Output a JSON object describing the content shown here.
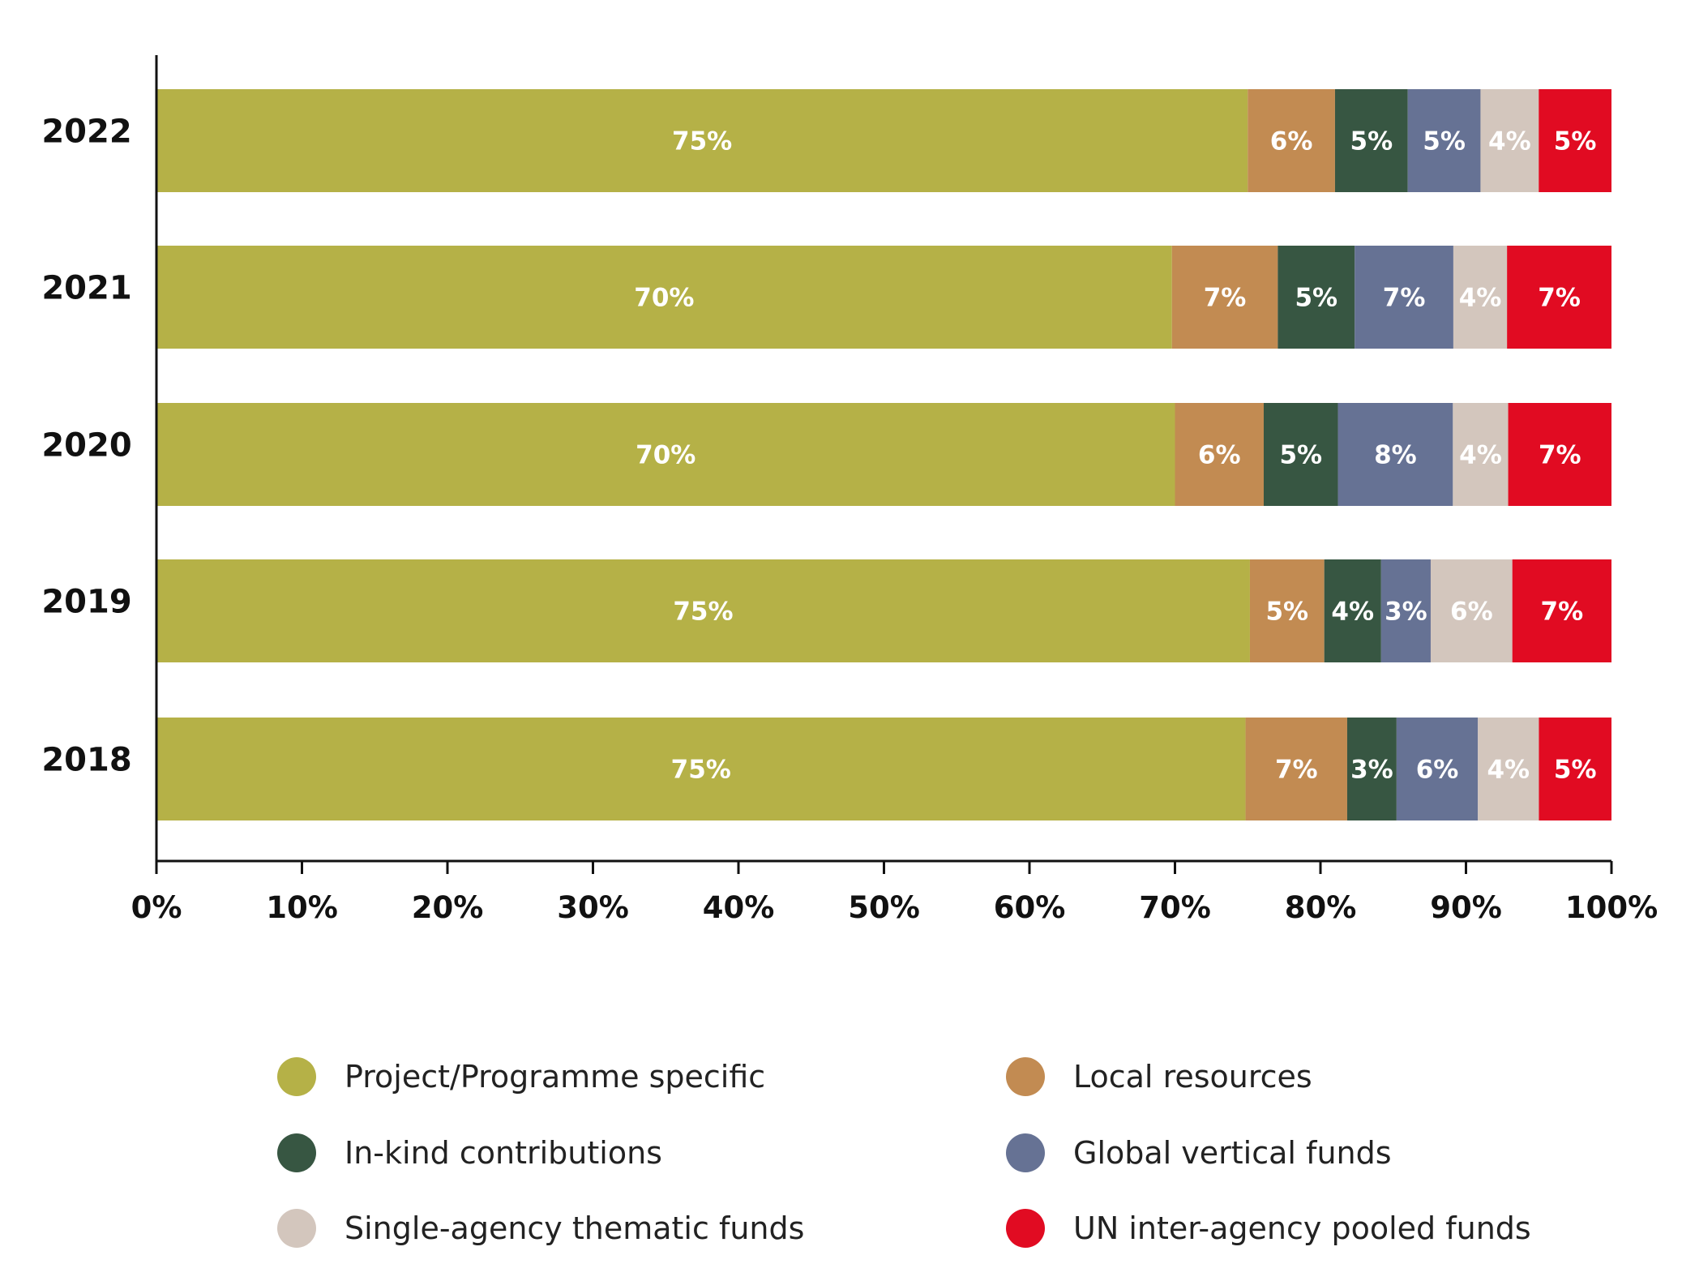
{
  "chart_data": {
    "type": "bar",
    "orientation": "horizontal",
    "stacked": true,
    "categories": [
      "2022",
      "2021",
      "2020",
      "2019",
      "2018"
    ],
    "series": [
      {
        "name": "Project/Programme specific",
        "color": "#b5b147",
        "values": [
          75,
          70,
          70,
          75,
          75
        ],
        "labels": [
          "75%",
          "70%",
          "70%",
          "75%",
          "75%"
        ]
      },
      {
        "name": "Local resources",
        "color": "#c28b52",
        "values": [
          6,
          7.3,
          6.1,
          5.1,
          7
        ],
        "labels": [
          "6%",
          "7%",
          "6%",
          "5%",
          "7%"
        ]
      },
      {
        "name": "In-kind contributions",
        "color": "#375642",
        "values": [
          5,
          5.3,
          5.1,
          3.9,
          3.4
        ],
        "labels": [
          "5%",
          "5%",
          "5%",
          "4%",
          "3%"
        ]
      },
      {
        "name": "Global vertical funds",
        "color": "#667294",
        "values": [
          5,
          6.8,
          7.9,
          3.4,
          5.6
        ],
        "labels": [
          "5%",
          "7%",
          "8%",
          "3%",
          "6%"
        ]
      },
      {
        "name": "Single-agency thematic funds",
        "color": "#d3c6bd",
        "values": [
          4,
          3.7,
          3.8,
          5.6,
          4.2
        ],
        "labels": [
          "4%",
          "4%",
          "4%",
          "6%",
          "4%"
        ]
      },
      {
        "name": "UN inter-agency pooled funds",
        "color": "#e10b22",
        "values": [
          5,
          7.2,
          7.1,
          6.8,
          5
        ],
        "labels": [
          "5%",
          "7%",
          "7%",
          "7%",
          "5%"
        ]
      }
    ],
    "xlim": [
      0,
      100
    ],
    "xticks": [
      "0%",
      "10%",
      "20%",
      "30%",
      "40%",
      "50%",
      "60%",
      "70%",
      "80%",
      "90%",
      "100%"
    ],
    "title": "",
    "xlabel": "",
    "ylabel": "",
    "grid": false,
    "legend_position": "bottom"
  }
}
